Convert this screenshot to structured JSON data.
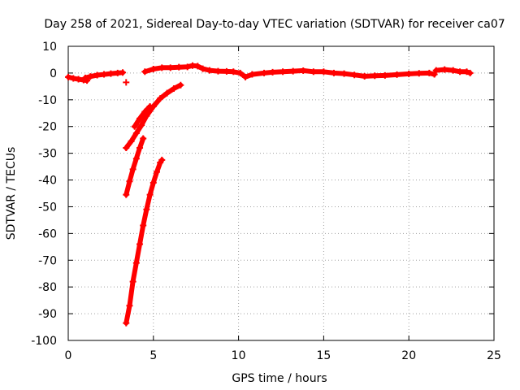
{
  "chart_data": {
    "type": "scatter",
    "title": "Day 258 of 2021, Sidereal Day-to-day VTEC variation (SDTVAR) for receiver ca07",
    "xlabel": "GPS time / hours",
    "ylabel": "SDTVAR / TECUs",
    "xlim": [
      0,
      25
    ],
    "ylim": [
      -100,
      10
    ],
    "xticks": [
      0,
      5,
      10,
      15,
      20,
      25
    ],
    "yticks": [
      10,
      0,
      -10,
      -20,
      -30,
      -40,
      -50,
      -60,
      -70,
      -80,
      -90,
      -100
    ],
    "grid": true,
    "marker": "plus",
    "color": "#ff0000",
    "series": [
      {
        "segments": [
          [
            [
              0.0,
              -1.5
            ],
            [
              0.3,
              -2.0
            ],
            [
              0.6,
              -2.3
            ],
            [
              0.9,
              -2.6
            ],
            [
              1.1,
              -2.8
            ]
          ],
          [
            [
              1.0,
              -1.8
            ],
            [
              1.3,
              -1.3
            ],
            [
              1.7,
              -0.8
            ],
            [
              2.1,
              -0.5
            ],
            [
              2.5,
              -0.2
            ],
            [
              2.9,
              0.0
            ],
            [
              3.2,
              0.2
            ]
          ],
          [
            [
              3.4,
              -3.5
            ]
          ],
          [
            [
              4.5,
              0.5
            ],
            [
              5.0,
              1.5
            ],
            [
              5.5,
              2.0
            ],
            [
              6.0,
              2.0
            ],
            [
              6.5,
              2.2
            ],
            [
              7.0,
              2.3
            ],
            [
              7.3,
              2.8
            ],
            [
              7.6,
              2.6
            ],
            [
              7.9,
              1.6
            ],
            [
              8.3,
              1.0
            ],
            [
              8.8,
              0.7
            ],
            [
              9.3,
              0.6
            ],
            [
              9.7,
              0.5
            ],
            [
              10.1,
              0.0
            ],
            [
              10.4,
              -1.5
            ],
            [
              10.8,
              -0.5
            ],
            [
              11.5,
              0.0
            ],
            [
              12.0,
              0.3
            ],
            [
              12.6,
              0.5
            ],
            [
              13.2,
              0.7
            ],
            [
              13.8,
              0.9
            ],
            [
              14.4,
              0.5
            ],
            [
              15.0,
              0.5
            ],
            [
              15.6,
              0.0
            ],
            [
              16.2,
              -0.2
            ],
            [
              16.8,
              -0.7
            ],
            [
              17.4,
              -1.2
            ],
            [
              18.0,
              -1.0
            ],
            [
              18.6,
              -0.9
            ],
            [
              19.3,
              -0.6
            ],
            [
              20.0,
              -0.3
            ],
            [
              20.6,
              -0.1
            ],
            [
              21.2,
              0.0
            ],
            [
              21.5,
              -0.5
            ]
          ],
          [
            [
              21.6,
              1.0
            ],
            [
              22.1,
              1.3
            ],
            [
              22.6,
              1.0
            ],
            [
              23.0,
              0.5
            ],
            [
              23.4,
              0.5
            ],
            [
              23.6,
              0.0
            ]
          ],
          [
            [
              3.4,
              -28.0
            ],
            [
              3.7,
              -25.5
            ],
            [
              4.0,
              -22.5
            ],
            [
              4.3,
              -19.5
            ],
            [
              4.6,
              -16.0
            ],
            [
              5.0,
              -12.5
            ],
            [
              5.4,
              -9.5
            ],
            [
              5.8,
              -7.5
            ],
            [
              6.2,
              -5.8
            ],
            [
              6.6,
              -4.5
            ]
          ],
          [
            [
              3.9,
              -20.0
            ],
            [
              4.2,
              -17.0
            ],
            [
              4.5,
              -14.5
            ],
            [
              4.8,
              -12.5
            ]
          ],
          [
            [
              3.4,
              -45.5
            ],
            [
              3.6,
              -40.5
            ],
            [
              3.8,
              -36.0
            ],
            [
              4.0,
              -32.0
            ],
            [
              4.2,
              -28.0
            ],
            [
              4.4,
              -24.5
            ]
          ],
          [
            [
              3.4,
              -93.5
            ],
            [
              3.6,
              -87.0
            ],
            [
              3.8,
              -78.0
            ],
            [
              4.0,
              -71.0
            ],
            [
              4.2,
              -64.0
            ],
            [
              4.4,
              -57.0
            ],
            [
              4.6,
              -51.0
            ],
            [
              4.8,
              -45.5
            ],
            [
              5.0,
              -41.0
            ],
            [
              5.2,
              -37.0
            ],
            [
              5.4,
              -33.5
            ],
            [
              5.5,
              -32.5
            ]
          ]
        ]
      }
    ]
  }
}
